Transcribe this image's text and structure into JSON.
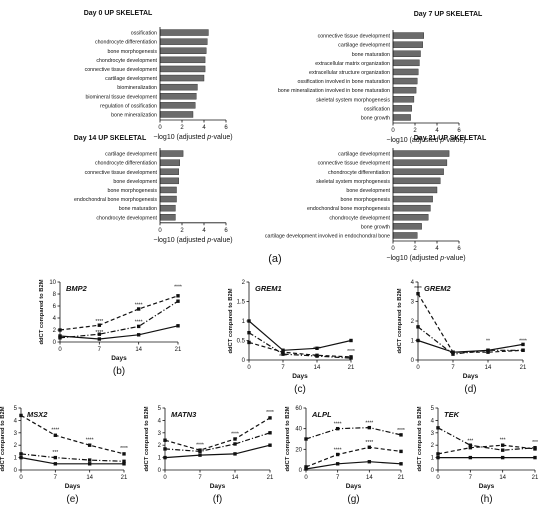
{
  "figure": {
    "top_caption": "(a)",
    "bar_xlabel_prefix": "−log10 (adjusted ",
    "bar_xlabel_italic": "p",
    "bar_xlabel_suffix": "-value)",
    "line_xlabel": "Days",
    "line_ylabel": "ddCT compared to B2M"
  },
  "colors": {
    "bar_fill": "#6b6b6b",
    "line": "#111111"
  },
  "chart_data": [
    {
      "type": "bar",
      "orientation": "horizontal",
      "title": "Day 0 UP SKELETAL",
      "categories": [
        "ossification",
        "chondrocyte differentiation",
        "bone morphogenesis",
        "chondrocyte development",
        "connective tissue development",
        "cartilage development",
        "biomineralization",
        "biomineral tissue development",
        "regulation of ossification",
        "bone mineralization"
      ],
      "values": [
        4.4,
        4.3,
        4.2,
        4.1,
        4.1,
        4.0,
        3.4,
        3.3,
        3.2,
        3.0
      ],
      "xlim": [
        0,
        6
      ],
      "xticks": [
        0,
        2,
        4,
        6
      ]
    },
    {
      "type": "bar",
      "orientation": "horizontal",
      "title": "Day 7 UP SKELETAL",
      "categories": [
        "connective tissue development",
        "cartilage development",
        "bone maturation",
        "extracellular matrix organization",
        "extracellular structure organization",
        "ossification involved in bone maturation",
        "bone mineralization involved in bone maturation",
        "skeletal system morphogenesis",
        "ossification",
        "bone growth"
      ],
      "values": [
        2.8,
        2.7,
        2.5,
        2.4,
        2.3,
        2.2,
        2.1,
        1.9,
        1.7,
        1.6
      ],
      "xlim": [
        0,
        6
      ],
      "xticks": [
        0,
        2,
        4,
        6
      ]
    },
    {
      "type": "bar",
      "orientation": "horizontal",
      "title": "Day 14 UP SKELETAL",
      "categories": [
        "cartilage development",
        "chondrocyte differentiation",
        "connective tissue development",
        "bone development",
        "bone morphogenesis",
        "endochondral bone morphogenesis",
        "bone maturation",
        "chondrocyte development"
      ],
      "values": [
        2.1,
        1.8,
        1.7,
        1.7,
        1.5,
        1.5,
        1.4,
        1.4
      ],
      "xlim": [
        0,
        6
      ],
      "xticks": [
        0,
        2,
        4,
        6
      ]
    },
    {
      "type": "bar",
      "orientation": "horizontal",
      "title": "Day 21 UP SKELETAL",
      "categories": [
        "cartilage development",
        "connective tissue development",
        "chondrocyte differentiation",
        "skeletal system morphogenesis",
        "bone development",
        "bone morphogenesis",
        "endochondral bone morphogenesis",
        "chondrocyte development",
        "bone growth",
        "cartilage development involved in endochondral bone"
      ],
      "values": [
        5.1,
        4.9,
        4.6,
        4.3,
        4.0,
        3.6,
        3.4,
        3.2,
        2.6,
        2.2
      ],
      "xlim": [
        0,
        6
      ],
      "xticks": [
        0,
        2,
        4,
        6
      ]
    },
    {
      "type": "line",
      "title": "BMP2",
      "panel_label": "(b)",
      "x": [
        0,
        7,
        14,
        21
      ],
      "xticks": [
        0,
        7,
        14,
        21
      ],
      "ylim": [
        0,
        10
      ],
      "yticks": [
        0,
        2,
        4,
        6,
        8,
        10
      ],
      "series": [
        {
          "style": "solid",
          "values": [
            1.0,
            0.5,
            1.2,
            2.7
          ]
        },
        {
          "style": "dashed",
          "values": [
            2.0,
            2.8,
            5.5,
            7.7
          ]
        },
        {
          "style": "dashdot",
          "values": [
            0.7,
            1.3,
            2.6,
            6.8
          ]
        }
      ],
      "annotations": [
        {
          "text": "****",
          "x": 7,
          "y": 3.2
        },
        {
          "text": "****",
          "x": 7,
          "y": 1.3
        },
        {
          "text": "****",
          "x": 14,
          "y": 5.9
        },
        {
          "text": "****",
          "x": 14,
          "y": 3.1
        },
        {
          "text": "****",
          "x": 21,
          "y": 8.9
        }
      ]
    },
    {
      "type": "line",
      "title": "GREM1",
      "panel_label": "(c)",
      "x": [
        0,
        7,
        14,
        21
      ],
      "xticks": [
        0,
        7,
        14,
        21
      ],
      "ylim": [
        0,
        2.0
      ],
      "yticks": [
        0,
        0.5,
        1.0,
        1.5,
        2.0
      ],
      "series": [
        {
          "style": "solid",
          "values": [
            1.0,
            0.25,
            0.3,
            0.5
          ]
        },
        {
          "style": "dashed",
          "values": [
            0.45,
            0.2,
            0.12,
            0.08
          ]
        },
        {
          "style": "dashdot",
          "values": [
            0.7,
            0.15,
            0.1,
            0.05
          ]
        }
      ],
      "annotations": [
        {
          "text": "****",
          "x": 7,
          "y": 0.05
        },
        {
          "text": "****",
          "x": 14,
          "y": 0.25
        },
        {
          "text": "****",
          "x": 21,
          "y": 0.18
        }
      ]
    },
    {
      "type": "line",
      "title": "GREM2",
      "panel_label": "(d)",
      "x": [
        0,
        7,
        14,
        21
      ],
      "xticks": [
        0,
        7,
        14,
        21
      ],
      "ylim": [
        0,
        4
      ],
      "yticks": [
        0,
        1,
        2,
        3,
        4
      ],
      "series": [
        {
          "style": "solid",
          "values": [
            1.0,
            0.4,
            0.5,
            0.8
          ]
        },
        {
          "style": "dashed",
          "values": [
            3.4,
            0.4,
            0.4,
            0.5
          ]
        },
        {
          "style": "dashdot",
          "values": [
            1.7,
            0.3,
            0.5,
            0.5
          ]
        }
      ],
      "annotations": [
        {
          "text": "****",
          "x": 0,
          "y": 3.6
        },
        {
          "text": "**",
          "x": 14,
          "y": 0.9
        },
        {
          "text": "****",
          "x": 21,
          "y": 0.9
        }
      ]
    },
    {
      "type": "line",
      "title": "MSX2",
      "panel_label": "(e)",
      "x": [
        0,
        7,
        14,
        21
      ],
      "xticks": [
        0,
        7,
        14,
        21
      ],
      "ylim": [
        0,
        5
      ],
      "yticks": [
        0,
        1,
        2,
        3,
        4,
        5
      ],
      "series": [
        {
          "style": "solid",
          "values": [
            1.0,
            0.5,
            0.5,
            0.5
          ]
        },
        {
          "style": "dashed",
          "values": [
            4.4,
            2.8,
            2.0,
            1.3
          ]
        },
        {
          "style": "dashdot",
          "values": [
            1.3,
            1.0,
            0.8,
            0.7
          ]
        }
      ],
      "annotations": [
        {
          "text": "****",
          "x": 7,
          "y": 3.1
        },
        {
          "text": "****",
          "x": 14,
          "y": 2.3
        },
        {
          "text": "****",
          "x": 21,
          "y": 1.6
        },
        {
          "text": "***",
          "x": 7,
          "y": 1.3
        }
      ]
    },
    {
      "type": "line",
      "title": "MATN3",
      "panel_label": "(f)",
      "x": [
        0,
        7,
        14,
        21
      ],
      "xticks": [
        0,
        7,
        14,
        21
      ],
      "ylim": [
        0,
        5
      ],
      "yticks": [
        0,
        1,
        2,
        3,
        4,
        5
      ],
      "series": [
        {
          "style": "solid",
          "values": [
            1.0,
            1.2,
            1.3,
            2.0
          ]
        },
        {
          "style": "dashed",
          "values": [
            2.4,
            1.6,
            2.5,
            4.2
          ]
        },
        {
          "style": "dashdot",
          "values": [
            1.7,
            1.5,
            2.1,
            3.0
          ]
        }
      ],
      "annotations": [
        {
          "text": "****",
          "x": 7,
          "y": 1.9
        },
        {
          "text": "****",
          "x": 14,
          "y": 2.8
        },
        {
          "text": "****",
          "x": 21,
          "y": 4.5
        }
      ]
    },
    {
      "type": "line",
      "title": "ALPL",
      "panel_label": "(g)",
      "x": [
        0,
        7,
        14,
        21
      ],
      "xticks": [
        0,
        7,
        14,
        21
      ],
      "ylim": [
        0,
        60
      ],
      "yticks": [
        0,
        20,
        40,
        60
      ],
      "series": [
        {
          "style": "solid",
          "values": [
            1.0,
            6.0,
            8.0,
            6.0
          ]
        },
        {
          "style": "dashed",
          "values": [
            3.0,
            15.0,
            22.0,
            18.0
          ]
        },
        {
          "style": "dashdot",
          "values": [
            30.0,
            40.0,
            41.0,
            34.0
          ]
        }
      ],
      "annotations": [
        {
          "text": "****",
          "x": 7,
          "y": 43
        },
        {
          "text": "****",
          "x": 14,
          "y": 44
        },
        {
          "text": "****",
          "x": 21,
          "y": 37
        },
        {
          "text": "****",
          "x": 7,
          "y": 18
        },
        {
          "text": "****",
          "x": 14,
          "y": 25
        }
      ]
    },
    {
      "type": "line",
      "title": "TEK",
      "panel_label": "(h)",
      "x": [
        0,
        7,
        14,
        21
      ],
      "xticks": [
        0,
        7,
        14,
        21
      ],
      "ylim": [
        0,
        5
      ],
      "yticks": [
        0,
        1,
        2,
        3,
        4,
        5
      ],
      "series": [
        {
          "style": "solid",
          "values": [
            1.0,
            1.0,
            1.0,
            1.0
          ]
        },
        {
          "style": "dashed",
          "values": [
            1.3,
            1.8,
            2.0,
            1.7
          ]
        },
        {
          "style": "dashdot",
          "values": [
            3.4,
            2.0,
            1.6,
            1.8
          ]
        }
      ],
      "annotations": [
        {
          "text": "***",
          "x": 7,
          "y": 2.2
        },
        {
          "text": "***",
          "x": 14,
          "y": 2.3
        },
        {
          "text": "***",
          "x": 21,
          "y": 2.1
        }
      ]
    }
  ]
}
